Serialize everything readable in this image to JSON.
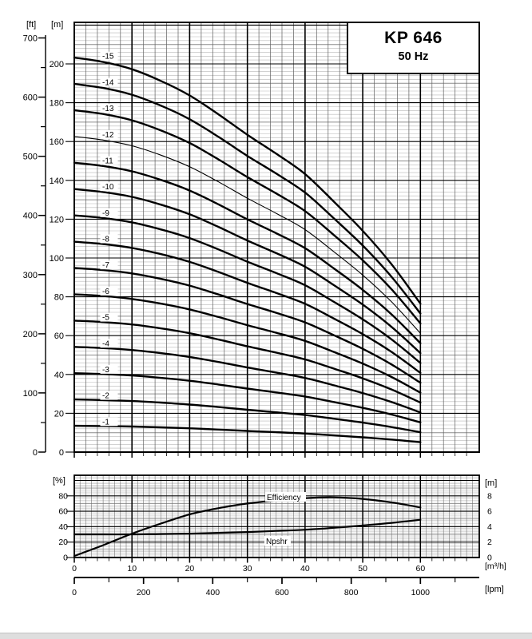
{
  "title_box": {
    "model": "KP 646",
    "frequency": "50 Hz"
  },
  "axis_units": {
    "head_ft": "[ft]",
    "head_m": "[m]",
    "efficiency_pct": "[%]",
    "npsh_m": "[m]",
    "flow_m3h": "[m³/h]",
    "flow_lpm": "[lpm]"
  },
  "series_labels": {
    "efficiency": "Efficiency",
    "npshr": "Npshr"
  },
  "chart_data": [
    {
      "id": "head-curves",
      "type": "line",
      "title": "KP 646 50 Hz multistage pump head curves",
      "xlabel": "[m³/h]",
      "x2label": "[lpm]",
      "ylabel_outer": "[ft]",
      "ylabel_inner": "[m]",
      "x_range_m3h": [
        0,
        70.2
      ],
      "y_range_m": [
        0,
        221.4
      ],
      "x_major_ticks_m3h": [
        0,
        10,
        20,
        30,
        40,
        50,
        60
      ],
      "x_minor_step_m3h": 2,
      "y_major_ticks_m": [
        0,
        20,
        40,
        60,
        80,
        100,
        120,
        140,
        160,
        180,
        200
      ],
      "y_minor_step_m": 2,
      "y_ticks_ft": [
        0,
        100,
        200,
        300,
        400,
        500,
        600,
        700
      ],
      "y_minor_step_ft": 50,
      "grid": "on",
      "q_samples_m3h": [
        0,
        5,
        10,
        15,
        20,
        25,
        30,
        35,
        40,
        45,
        50,
        55,
        60
      ],
      "per_stage_head_m": [
        13.55,
        13.4,
        13.15,
        12.75,
        12.25,
        11.6,
        10.9,
        10.25,
        9.55,
        8.6,
        7.6,
        6.45,
        5.1
      ],
      "stages": [
        {
          "label": "-1",
          "multiplier": 1,
          "thin": false
        },
        {
          "label": "-2",
          "multiplier": 2,
          "thin": false
        },
        {
          "label": "-3",
          "multiplier": 3,
          "thin": false
        },
        {
          "label": "-4",
          "multiplier": 4,
          "thin": false
        },
        {
          "label": "-5",
          "multiplier": 5,
          "thin": false
        },
        {
          "label": "-6",
          "multiplier": 6,
          "thin": false
        },
        {
          "label": "-7",
          "multiplier": 7,
          "thin": false
        },
        {
          "label": "-8",
          "multiplier": 8,
          "thin": false
        },
        {
          "label": "-9",
          "multiplier": 9,
          "thin": false
        },
        {
          "label": "-10",
          "multiplier": 10,
          "thin": false
        },
        {
          "label": "-11",
          "multiplier": 11,
          "thin": false
        },
        {
          "label": "-12",
          "multiplier": 12,
          "thin": true
        },
        {
          "label": "-13",
          "multiplier": 13,
          "thin": false
        },
        {
          "label": "-14",
          "multiplier": 14,
          "thin": false
        },
        {
          "label": "-15",
          "multiplier": 15,
          "thin": false
        }
      ]
    },
    {
      "id": "efficiency-npsh",
      "type": "line",
      "x_m3h": [
        0,
        5,
        10,
        15,
        20,
        25,
        30,
        35,
        40,
        45,
        50,
        55,
        60
      ],
      "series": [
        {
          "name": "Efficiency",
          "unit": "%",
          "axis": "left",
          "values": [
            2,
            16,
            31,
            44,
            56,
            64,
            70,
            74,
            77,
            78,
            76,
            71.5,
            65
          ]
        },
        {
          "name": "Npshr",
          "unit": "m",
          "axis": "right",
          "values": [
            3.0,
            3.0,
            3.0,
            3.05,
            3.1,
            3.2,
            3.3,
            3.45,
            3.6,
            3.85,
            4.15,
            4.5,
            4.9
          ]
        }
      ],
      "y_left_ticks_pct": [
        0,
        20,
        40,
        60,
        80
      ],
      "y_left_range_pct": [
        0,
        106.7
      ],
      "y_right_ticks_m": [
        0,
        2,
        4,
        6,
        8
      ],
      "y_right_range_m": [
        0,
        10.67
      ],
      "x_ticks_m3h": [
        0,
        10,
        20,
        30,
        40,
        50,
        60
      ],
      "x_ticks_lpm": [
        0,
        200,
        400,
        600,
        800,
        1000
      ],
      "grid": "on"
    }
  ]
}
